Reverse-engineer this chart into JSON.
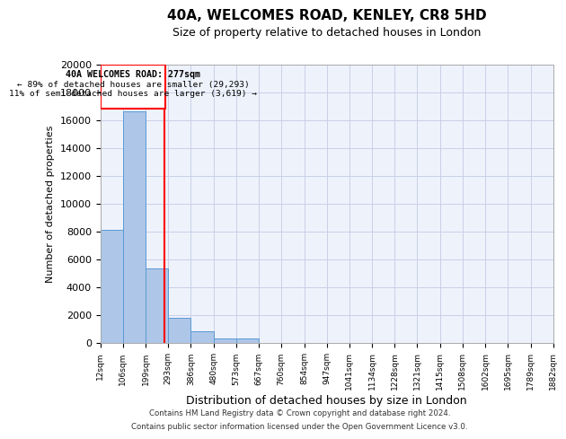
{
  "title": "40A, WELCOMES ROAD, KENLEY, CR8 5HD",
  "subtitle": "Size of property relative to detached houses in London",
  "xlabel": "Distribution of detached houses by size in London",
  "ylabel": "Number of detached properties",
  "bar_color": "#aec6e8",
  "bar_edge_color": "#5b9bd5",
  "background_color": "#ffffff",
  "plot_bg_color": "#eef2fb",
  "grid_color": "#c8d0e8",
  "bin_edges": [
    12,
    106,
    199,
    293,
    386,
    480,
    573,
    667,
    760,
    854,
    947,
    1041,
    1134,
    1228,
    1321,
    1415,
    1508,
    1602,
    1695,
    1789,
    1882
  ],
  "bar_heights": [
    8100,
    16600,
    5300,
    1800,
    800,
    300,
    300,
    0,
    0,
    0,
    0,
    0,
    0,
    0,
    0,
    0,
    0,
    0,
    0,
    0
  ],
  "property_size": 277,
  "red_line_x": 277,
  "annotation_title": "40A WELCOMES ROAD: 277sqm",
  "annotation_line1": "← 89% of detached houses are smaller (29,293)",
  "annotation_line2": "11% of semi-detached houses are larger (3,619) →",
  "ylim": [
    0,
    20000
  ],
  "yticks": [
    0,
    2000,
    4000,
    6000,
    8000,
    10000,
    12000,
    14000,
    16000,
    18000,
    20000
  ],
  "footer1": "Contains HM Land Registry data © Crown copyright and database right 2024.",
  "footer2": "Contains public sector information licensed under the Open Government Licence v3.0."
}
